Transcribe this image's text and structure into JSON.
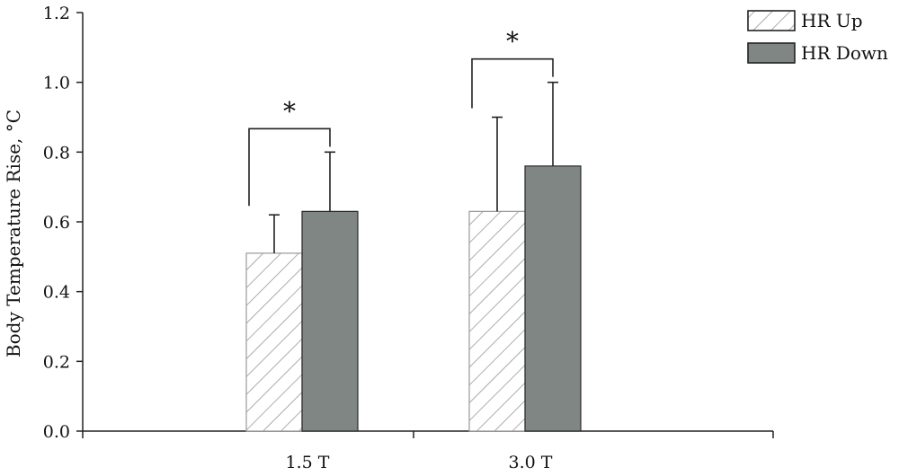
{
  "chart_data": {
    "type": "bar",
    "title": "",
    "xlabel": "",
    "ylabel": "Body Temperature Rise, °C",
    "ylim": [
      0,
      1.2
    ],
    "yticks": [
      "0.0",
      "0.2",
      "0.4",
      "0.6",
      "0.8",
      "1.0",
      "1.2"
    ],
    "categories": [
      "1.5 T",
      "3.0 T"
    ],
    "series": [
      {
        "name": "HR Up",
        "values": [
          0.51,
          0.63
        ],
        "errors": [
          0.11,
          0.27
        ],
        "pattern": "hatched",
        "color": "#ffffff"
      },
      {
        "name": "HR Down",
        "values": [
          0.63,
          0.76
        ],
        "errors": [
          0.17,
          0.24
        ],
        "pattern": "solid",
        "color": "#7f8684"
      }
    ],
    "significance": [
      {
        "category": "1.5 T",
        "symbol": "*"
      },
      {
        "category": "3.0 T",
        "symbol": "*"
      }
    ],
    "legend_position": "top-right",
    "grid": false
  }
}
